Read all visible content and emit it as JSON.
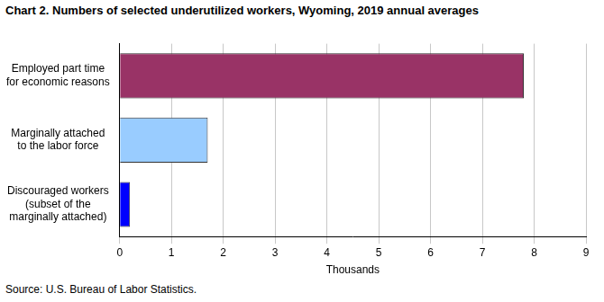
{
  "chart_data": {
    "type": "bar",
    "orientation": "horizontal",
    "title": "Chart 2. Numbers of selected underutilized workers, Wyoming, 2019 annual averages",
    "source": "Source: U.S. Bureau of Labor Statistics.",
    "categories": [
      "Employed part time\nfor economic reasons",
      "Marginally attached\nto the labor force",
      "Discouraged workers\n(subset of the\nmarginally attached)"
    ],
    "values": [
      7.8,
      1.7,
      0.2
    ],
    "colors": [
      "#993366",
      "#99ccff",
      "#0000ff"
    ],
    "x_label": "Thousands",
    "xlim": [
      0,
      9
    ],
    "xticks": [
      0,
      1,
      2,
      3,
      4,
      5,
      6,
      7,
      8,
      9
    ],
    "grid": true
  }
}
